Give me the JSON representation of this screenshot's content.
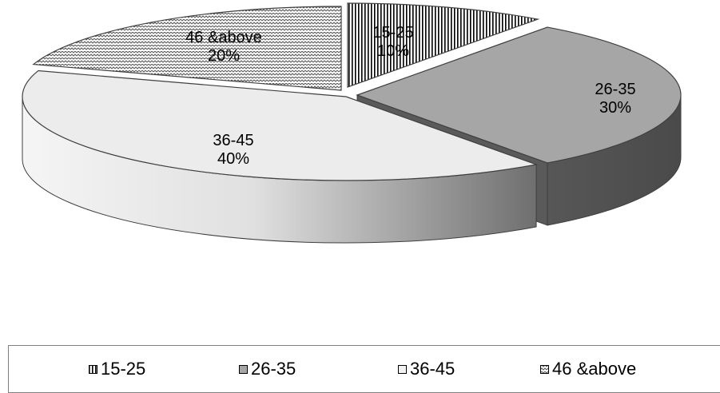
{
  "chart_data": {
    "type": "pie",
    "style": "3d-exploded",
    "categories": [
      "15-25",
      "26-35",
      "36-45",
      "46 &above"
    ],
    "values": [
      10,
      30,
      40,
      20
    ],
    "value_labels": [
      "10%",
      "30%",
      "40%",
      "20%"
    ],
    "legend": {
      "placement": "bottom",
      "entries": [
        "15-25",
        "26-35",
        "36-45",
        "46 &above"
      ]
    },
    "colors": [
      "#ffffff",
      "#a6a6a6",
      "#ececec",
      "#ffffff"
    ],
    "patterns": [
      "vertical-stripes",
      "solid",
      "solid",
      "zigzag"
    ]
  }
}
